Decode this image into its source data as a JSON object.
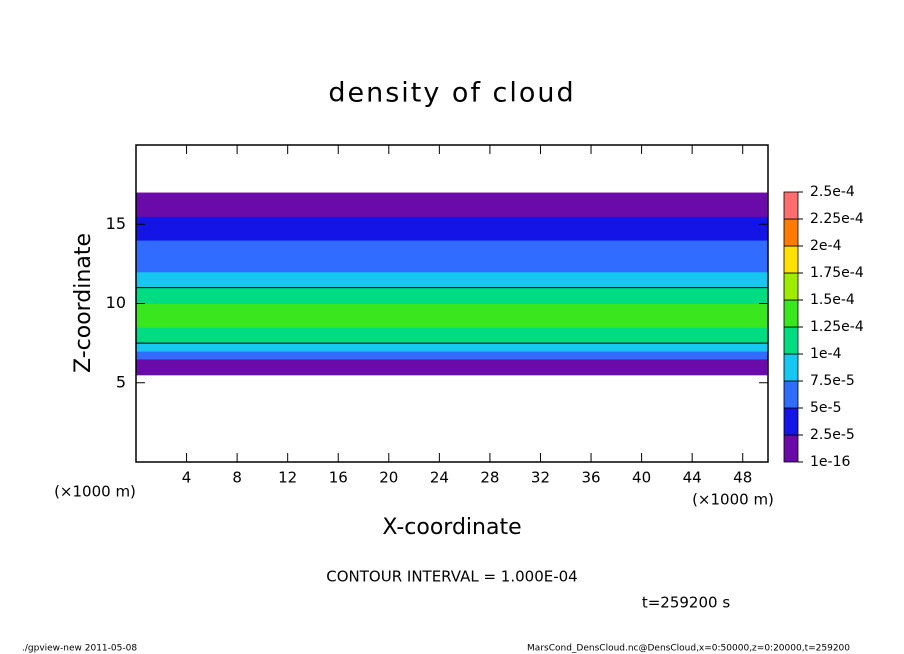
{
  "chart_data": {
    "type": "heatmap",
    "title": "density of cloud",
    "xlabel": "X-coordinate",
    "ylabel": "Z-coordinate",
    "x_unit": "(×1000 m)",
    "xlim": [
      0,
      50
    ],
    "xticks": [
      4,
      8,
      12,
      16,
      20,
      24,
      28,
      32,
      36,
      40,
      44,
      48
    ],
    "ylim": [
      0,
      20
    ],
    "yticks": [
      5,
      10,
      15
    ],
    "z_edges": [
      5.5,
      6,
      6.5,
      7,
      7.5,
      8,
      8.5,
      9,
      9.5,
      10,
      10.5,
      11,
      11.5,
      12,
      12.5,
      13,
      13.5,
      14,
      14.5,
      15,
      15.5,
      16,
      16.5,
      17
    ],
    "values": [
      5e-06,
      2e-05,
      5e-05,
      8e-05,
      0.000105,
      0.000115,
      0.00013,
      0.000135,
      0.00013,
      0.000115,
      0.000102,
      8.5e-05,
      7.5e-05,
      6.5e-05,
      6e-05,
      5.5e-05,
      5e-05,
      4.5e-05,
      4e-05,
      3.5e-05,
      2e-05,
      1e-05,
      1e-06
    ],
    "levels": [
      1e-16,
      {
        "value": 2.5e-05,
        "label": "2.5e-5"
      },
      {
        "value": 5e-05,
        "label": "5e-5"
      },
      {
        "value": 7.5e-05,
        "label": "7.5e-5"
      },
      {
        "value": 0.0001,
        "label": "1e-4"
      },
      {
        "value": 0.000125,
        "label": "1.25e-4"
      },
      {
        "value": 0.00015,
        "label": "1.5e-4"
      },
      {
        "value": 0.000175,
        "label": "1.75e-4"
      },
      {
        "value": 0.0002,
        "label": "2e-4"
      },
      {
        "value": 0.000225,
        "label": "2.25e-4"
      },
      {
        "value": 0.00025,
        "label": "2.5e-4"
      }
    ],
    "colors": [
      "#6a0aa8",
      "#1414e6",
      "#2f6cff",
      "#16c8f0",
      "#00dc82",
      "#3ae61e",
      "#a0ec00",
      "#ffe000",
      "#ff7a00",
      "#ff6e6e"
    ],
    "contour_level": 4,
    "annotations": [
      "CONTOUR INTERVAL = 1.000E-04",
      "t=259200 s",
      "./gpview-new  2011-05-08",
      "MarsCond_DensCloud.nc@DensCloud,x=0:50000,z=0:20000,t=259200"
    ]
  }
}
